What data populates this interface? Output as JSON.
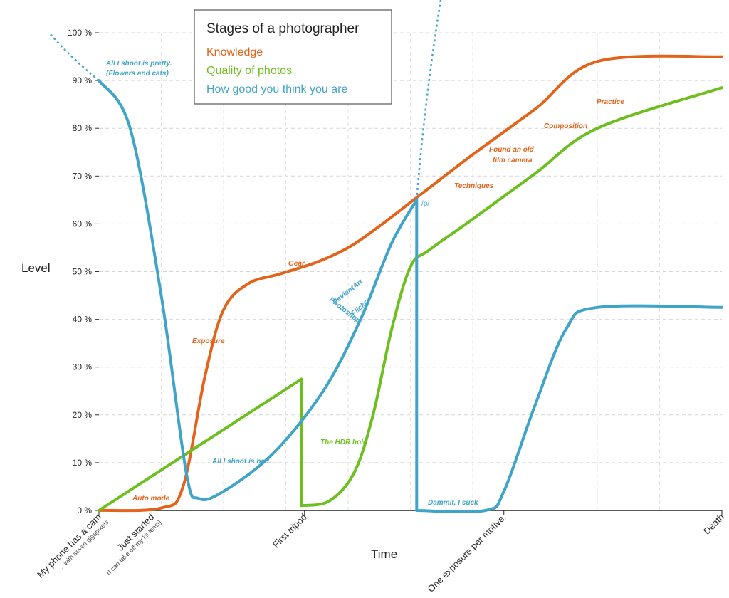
{
  "chart_data": {
    "type": "line",
    "title": "Stages of a photographer",
    "ylabel": "Level",
    "xlabel": "Time",
    "ylim": [
      0,
      100
    ],
    "xlim": [
      0,
      100
    ],
    "y_ticks": [
      "0 %",
      "10 %",
      "20 %",
      "30 %",
      "40 %",
      "50 %",
      "60 %",
      "70 %",
      "80 %",
      "90 %",
      "100 %"
    ],
    "grid": true,
    "legend_position": "top-center",
    "x_ticks": [
      {
        "x": 0,
        "label": "My phone has a cam",
        "sublabel": "...with seven gigapixels"
      },
      {
        "x": 8.5,
        "label": "Just started",
        "sublabel": "(I can take off my kit lens!)"
      },
      {
        "x": 33,
        "label": "First tripod",
        "sublabel": ""
      },
      {
        "x": 65,
        "label": "One exposure per motive.",
        "sublabel": ""
      },
      {
        "x": 100,
        "label": "Death",
        "sublabel": ""
      }
    ],
    "series": [
      {
        "name": "Knowledge",
        "color": "#e4631b",
        "points": [
          [
            0,
            0
          ],
          [
            10,
            0.5
          ],
          [
            13.5,
            5
          ],
          [
            17,
            28
          ],
          [
            20,
            42
          ],
          [
            24,
            47.5
          ],
          [
            29,
            49.5
          ],
          [
            35,
            52
          ],
          [
            40,
            55
          ],
          [
            45,
            59.5
          ],
          [
            52,
            66.5
          ],
          [
            60,
            74.5
          ],
          [
            70,
            84
          ],
          [
            80,
            94
          ],
          [
            100,
            95
          ]
        ]
      },
      {
        "name": "Quality of photos",
        "color": "#6cbf1f",
        "points": [
          [
            0,
            0
          ],
          [
            32.5,
            27.5
          ],
          [
            32.5,
            1
          ],
          [
            37,
            2
          ],
          [
            41,
            8
          ],
          [
            44,
            20
          ],
          [
            47,
            38
          ],
          [
            50,
            51
          ],
          [
            53,
            54.5
          ],
          [
            60,
            61
          ],
          [
            70,
            70.5
          ],
          [
            80,
            80
          ],
          [
            100,
            88.5
          ]
        ]
      },
      {
        "name": "How good you think you are",
        "color": "#3fa4c7",
        "points": [
          [
            0,
            90
          ],
          [
            5,
            80
          ],
          [
            10,
            45
          ],
          [
            14,
            8
          ],
          [
            16,
            2.5
          ],
          [
            20,
            4
          ],
          [
            28,
            12
          ],
          [
            36,
            25
          ],
          [
            42,
            40
          ],
          [
            47,
            56
          ],
          [
            51,
            65
          ],
          [
            51,
            0
          ],
          [
            62,
            0
          ],
          [
            65,
            4
          ],
          [
            70,
            22
          ],
          [
            75,
            38
          ],
          [
            80,
            42.5
          ],
          [
            100,
            42.5
          ]
        ]
      }
    ],
    "dotted_extensions": [
      {
        "series": "How good you think you are",
        "from": [
          0,
          90
        ],
        "to": [
          -8,
          100
        ]
      },
      {
        "series": "How good you think you are",
        "from": [
          51,
          65
        ],
        "to": [
          55,
          108
        ]
      }
    ],
    "annotations": [
      {
        "text": "All I shoot is pretty.",
        "color": "#3fa4c7"
      },
      {
        "text": "(Flowers and cats)",
        "color": "#3fa4c7"
      },
      {
        "text": "Auto mode",
        "color": "#e4631b"
      },
      {
        "text": "Exposure",
        "color": "#e4631b"
      },
      {
        "text": "Gear",
        "color": "#e4631b"
      },
      {
        "text": "All I shoot is bad.",
        "color": "#3fa4c7"
      },
      {
        "text": "The HDR hole",
        "color": "#6cbf1f"
      },
      {
        "text": "DeviantArt",
        "color": "#3fa4c7"
      },
      {
        "text": "Photoshop",
        "color": "#3fa4c7"
      },
      {
        "text": "Flickr",
        "color": "#3fa4c7"
      },
      {
        "text": "/p/",
        "color": "#3fa4c7"
      },
      {
        "text": "Dammit, I suck",
        "color": "#3fa4c7"
      },
      {
        "text": "Techniques",
        "color": "#e4631b"
      },
      {
        "text": "Found an old",
        "color": "#e4631b"
      },
      {
        "text": "film camera",
        "color": "#e4631b"
      },
      {
        "text": "Composition",
        "color": "#e4631b"
      },
      {
        "text": "Practice",
        "color": "#e4631b"
      }
    ]
  }
}
